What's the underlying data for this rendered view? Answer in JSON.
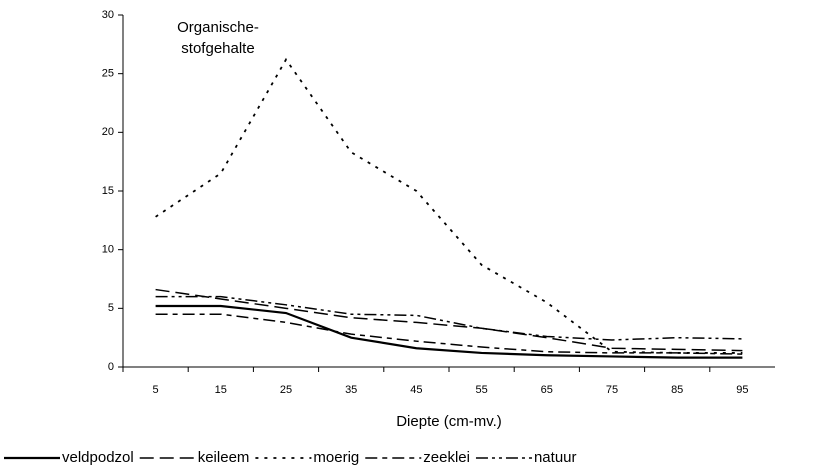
{
  "chart_data": {
    "type": "line",
    "title": [
      "Organische-",
      "stofgehalte"
    ],
    "x_label": "Diepte (cm-mv.)",
    "categories": [
      "5",
      "15",
      "25",
      "35",
      "45",
      "55",
      "65",
      "75",
      "85",
      "95"
    ],
    "ylim": [
      0,
      30
    ],
    "yticks": [
      0,
      5,
      10,
      15,
      20,
      25,
      30
    ],
    "series": [
      {
        "name": "veldpodzol",
        "color": "#000000",
        "dash": "none",
        "width": 2.2,
        "values": [
          5.2,
          5.2,
          4.6,
          2.5,
          1.6,
          1.2,
          1.0,
          0.9,
          0.8,
          0.8
        ]
      },
      {
        "name": "keileem",
        "color": "#000000",
        "dash": "14,6",
        "width": 1.5,
        "values": [
          6.6,
          5.8,
          5.0,
          4.2,
          3.8,
          3.3,
          2.5,
          1.6,
          1.5,
          1.4
        ]
      },
      {
        "name": "moerig",
        "color": "#000000",
        "dash": "3,6",
        "width": 1.8,
        "values": [
          12.8,
          16.5,
          26.2,
          18.3,
          15.0,
          8.7,
          5.5,
          1.3,
          1.2,
          1.2
        ]
      },
      {
        "name": "zeeklei",
        "color": "#000000",
        "dash": "12,5,5,5",
        "width": 1.5,
        "values": [
          4.5,
          4.5,
          3.8,
          2.8,
          2.2,
          1.7,
          1.3,
          1.2,
          1.2,
          1.1
        ]
      },
      {
        "name": "natuur",
        "color": "#000000",
        "dash": "12,4,3,4,3,4",
        "width": 1.5,
        "values": [
          6.0,
          6.0,
          5.3,
          4.5,
          4.4,
          3.3,
          2.6,
          2.3,
          2.5,
          2.4
        ]
      }
    ]
  }
}
